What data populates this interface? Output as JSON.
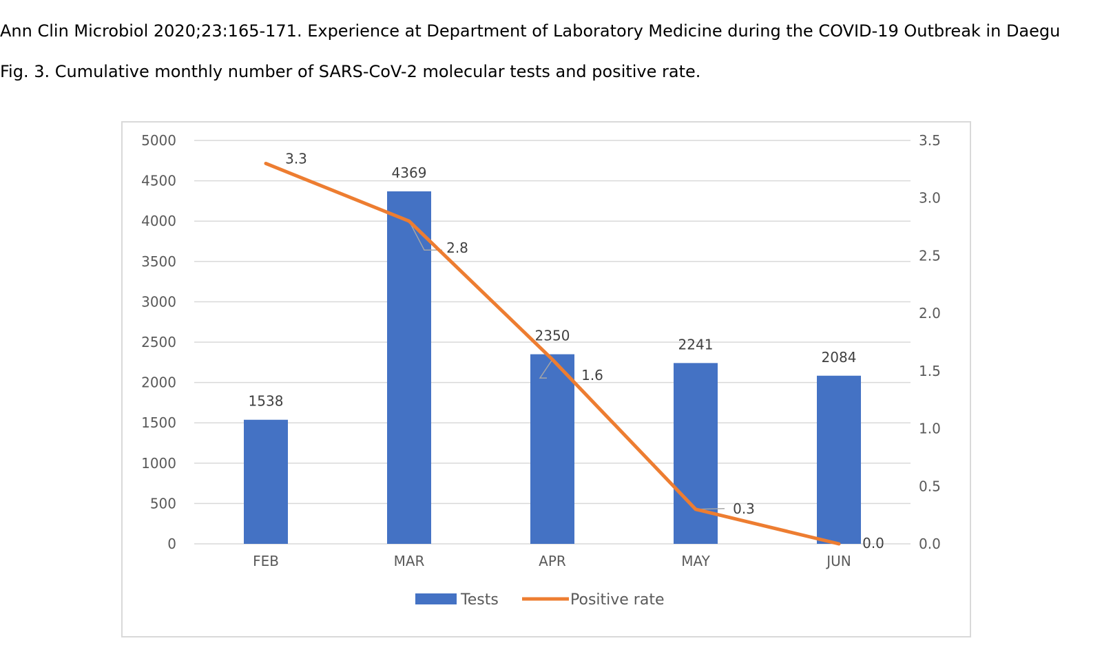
{
  "header": {
    "citation": "Ann Clin Microbiol 2020;23:165-171. Experience at Department of Laboratory Medicine during the COVID-19 Outbreak in Daegu",
    "figure_title": "Fig. 3. Cumulative monthly number of SARS-CoV-2 molecular tests and positive rate."
  },
  "chart_data": {
    "type": "bar",
    "title": "",
    "xlabel": "",
    "ylabel": "",
    "categories": [
      "FEB",
      "MAR",
      "APR",
      "MAY",
      "JUN"
    ],
    "series": [
      {
        "name": "Tests",
        "type": "bar",
        "axis": "left",
        "color": "#4472C4",
        "values": [
          1538,
          4369,
          2350,
          2241,
          2084
        ],
        "labels": [
          "1538",
          "4369",
          "2350",
          "2241",
          "2084"
        ]
      },
      {
        "name": "Positive rate",
        "type": "line",
        "axis": "right",
        "color": "#ED7D31",
        "values": [
          3.3,
          2.8,
          1.6,
          0.3,
          0.0
        ],
        "labels": [
          "3.3",
          "2.8",
          "1.6",
          "0.3",
          "0.0"
        ]
      }
    ],
    "y_left": {
      "lim": [
        0,
        5000
      ],
      "ticks": [
        0,
        500,
        1000,
        1500,
        2000,
        2500,
        3000,
        3500,
        4000,
        4500,
        5000
      ],
      "tick_labels": [
        "0",
        "500",
        "1000",
        "1500",
        "2000",
        "2500",
        "3000",
        "3500",
        "4000",
        "4500",
        "5000"
      ]
    },
    "y_right": {
      "lim": [
        0,
        3.5
      ],
      "ticks": [
        0,
        0.5,
        1.0,
        1.5,
        2.0,
        2.5,
        3.0,
        3.5
      ],
      "tick_labels": [
        "0.0",
        "0.5",
        "1.0",
        "1.5",
        "2.0",
        "2.5",
        "3.0",
        "3.5"
      ]
    },
    "grid": true,
    "legend": "bottom"
  }
}
